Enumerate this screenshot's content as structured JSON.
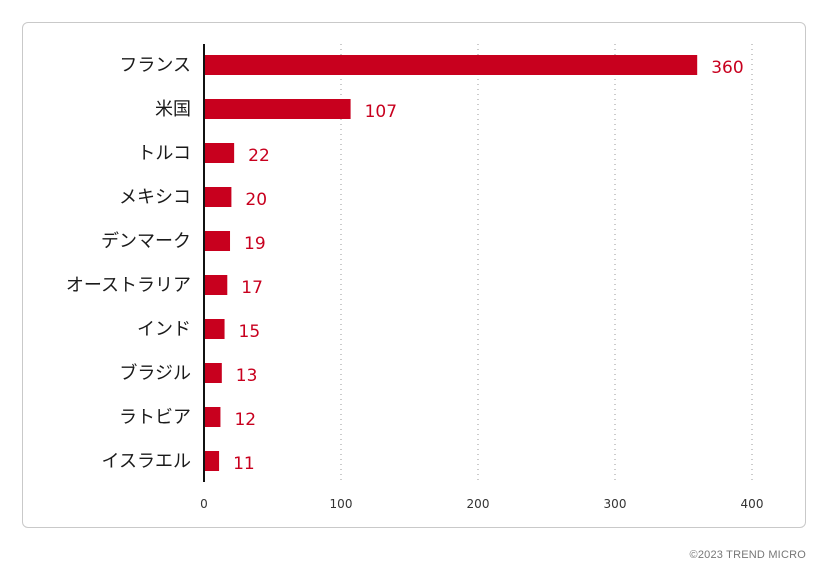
{
  "chart_data": {
    "type": "bar",
    "orientation": "horizontal",
    "categories": [
      "フランス",
      "米国",
      "トルコ",
      "メキシコ",
      "デンマーク",
      "オーストラリア",
      "インド",
      "ブラジル",
      "ラトビア",
      "イスラエル"
    ],
    "values": [
      360,
      107,
      22,
      20,
      19,
      17,
      15,
      13,
      12,
      11
    ],
    "xlim": [
      0,
      400
    ],
    "x_ticks": [
      0,
      100,
      200,
      300,
      400
    ],
    "grid": "vertical dotted",
    "legend": "none",
    "bar_color": "#c8001e",
    "value_label_color": "#c8001e"
  },
  "footer": {
    "copyright": "©2023 TREND MICRO"
  }
}
